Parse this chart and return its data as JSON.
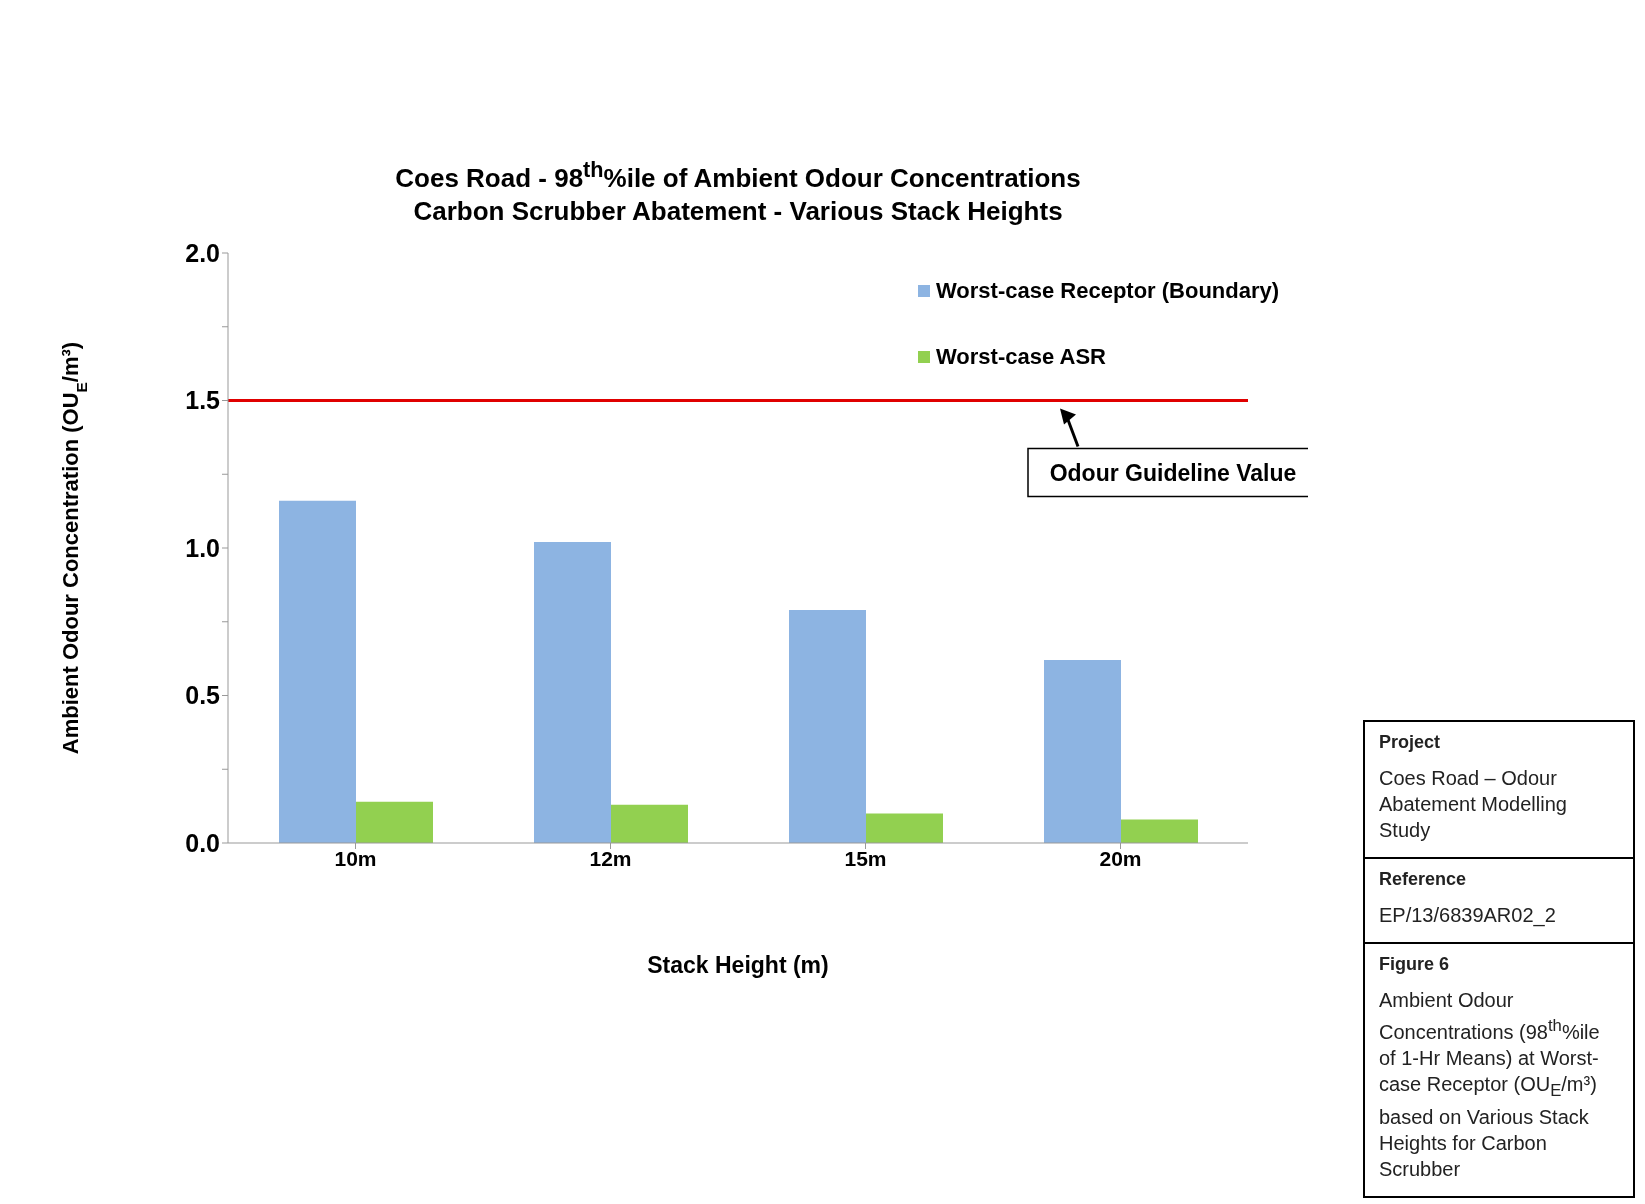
{
  "chart_data": {
    "type": "bar",
    "title": "Coes Road -  98$^{th}$%ile of Ambient Odour Concentrations",
    "subtitle": "Carbon Scrubber Abatement - Various Stack Heights",
    "xlabel": "Stack Height (m)",
    "ylabel": "Ambient Odour Concentration (OU$_{E}$/m³)",
    "categories": [
      "10m",
      "12m",
      "15m",
      "20m"
    ],
    "series": [
      {
        "name": "Worst-case Receptor (Boundary)",
        "color": "#8db4e2",
        "values": [
          1.16,
          1.02,
          0.79,
          0.62
        ]
      },
      {
        "name": "Worst-case ASR",
        "color": "#92d050",
        "values": [
          0.14,
          0.13,
          0.1,
          0.08
        ]
      }
    ],
    "ylim": [
      0,
      2
    ],
    "yticks": [
      {
        "value": 0,
        "label": "0.0"
      },
      {
        "value": 0.25,
        "label": null
      },
      {
        "value": 0.5,
        "label": "0.5"
      },
      {
        "value": 0.75,
        "label": null
      },
      {
        "value": 1,
        "label": "1.0"
      },
      {
        "value": 1.25,
        "label": null
      },
      {
        "value": 1.5,
        "label": "1.5"
      },
      {
        "value": 1.75,
        "label": null
      },
      {
        "value": 2,
        "label": "2.0"
      }
    ],
    "ref_lines": [
      {
        "axis": "y",
        "value": 1.5,
        "label": "Odour Guideline Value",
        "color": "#e00000"
      }
    ],
    "legend": "top right",
    "annotations": [
      "Project",
      "Coes Road – Odour Abatement Modelling Study",
      "Reference",
      "EP/13/6839AR02_2",
      "Figure 6",
      "Ambient Odour Concentrations (98$^{th}$%ile of 1-Hr Means) at Worst-case Receptor (OU$_{E}$/m³) based on Various Stack Heights for Carbon Scrubber"
    ]
  }
}
